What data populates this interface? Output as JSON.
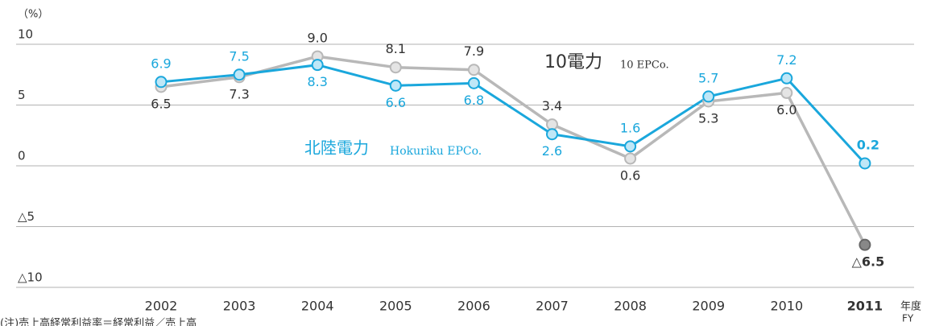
{
  "chart_data": {
    "type": "line",
    "unit_label": "（%）",
    "categories": [
      "2002",
      "2003",
      "2004",
      "2005",
      "2006",
      "2007",
      "2008",
      "2009",
      "2010",
      "2011"
    ],
    "series": [
      {
        "name": "10電力",
        "subname": "10 EPCo.",
        "color": "#b8b8b8",
        "values": [
          6.5,
          7.3,
          9.0,
          8.1,
          7.9,
          3.4,
          0.6,
          5.3,
          6.0,
          -6.5
        ],
        "value_labels": [
          "6.5",
          "7.3",
          "9.0",
          "8.1",
          "7.9",
          "3.4",
          "0.6",
          "5.3",
          "6.0",
          "△6.5"
        ]
      },
      {
        "name": "北陸電力",
        "subname": "Hokuriku EPCo.",
        "color": "#1aa7dc",
        "values": [
          6.9,
          7.5,
          8.3,
          6.6,
          6.8,
          2.6,
          1.6,
          5.7,
          7.2,
          0.2
        ],
        "value_labels": [
          "6.9",
          "7.5",
          "8.3",
          "6.6",
          "6.8",
          "2.6",
          "1.6",
          "5.7",
          "7.2",
          "0.2"
        ]
      }
    ],
    "ylim": [
      -10,
      10
    ],
    "yticks": [
      10,
      5,
      0,
      {
        "value": -5,
        "label": "△5"
      },
      {
        "value": -10,
        "label": "△10"
      }
    ],
    "grid": true,
    "x_unit_label": "年度",
    "x_unit_label_en": "FY",
    "note": "(注)売上高経常利益率＝経常利益／売上高"
  }
}
